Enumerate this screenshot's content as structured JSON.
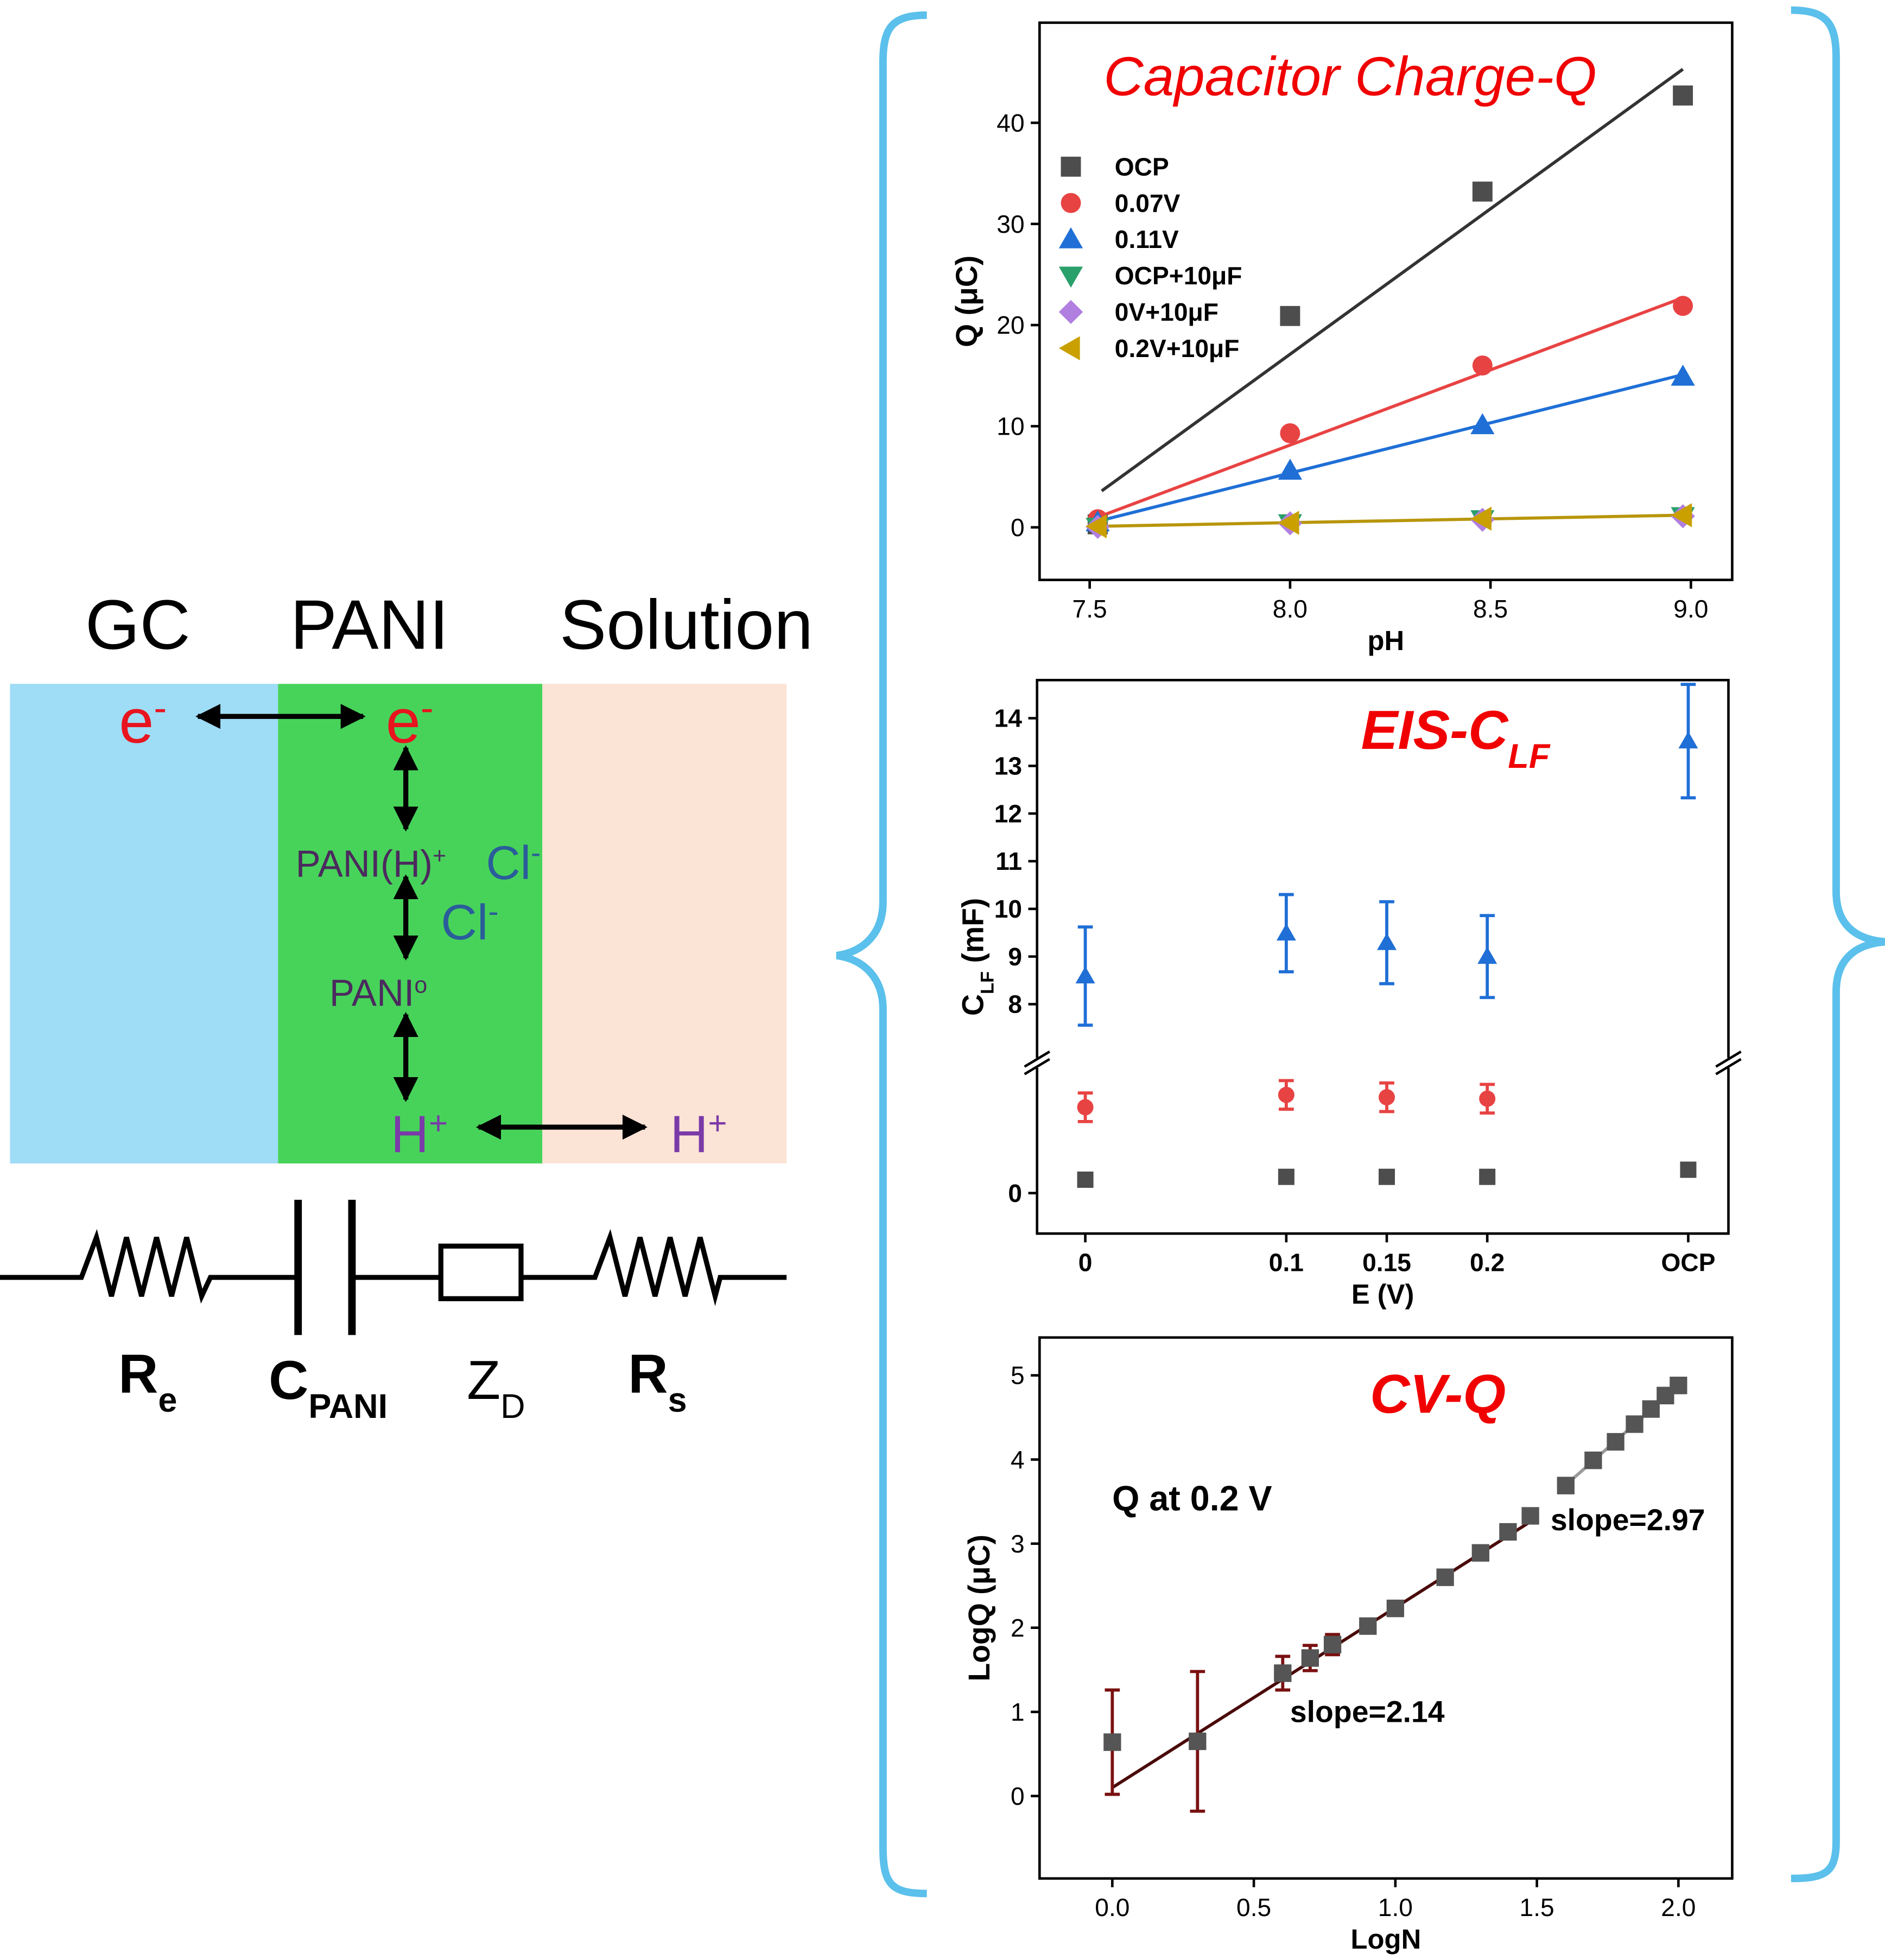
{
  "diagram": {
    "regions": [
      "GC",
      "PANI",
      "Solution"
    ],
    "species": [
      [
        {
          "text": "e"
        },
        {
          "sup": "-"
        }
      ],
      [
        {
          "text": "e"
        },
        {
          "sup": "-"
        }
      ],
      [
        {
          "text": "PANI(H)"
        },
        {
          "sup": "+"
        }
      ],
      [
        {
          "text": "Cl"
        },
        {
          "sup": "-"
        }
      ],
      [
        {
          "text": "Cl"
        },
        {
          "sup": "-"
        }
      ],
      [
        {
          "text": "PANI"
        },
        {
          "sup": "o"
        }
      ],
      [
        {
          "text": "H"
        },
        {
          "sup": "+"
        }
      ],
      [
        {
          "text": "H"
        },
        {
          "sup": "+"
        }
      ]
    ],
    "circuit": [
      [
        {
          "text": "R"
        },
        {
          "sub": "e"
        }
      ],
      [
        {
          "text": "C"
        },
        {
          "sub": "PANI"
        }
      ],
      [
        {
          "text": "Z"
        },
        {
          "sub": "D"
        }
      ],
      [
        {
          "text": "R"
        },
        {
          "sub": "s"
        }
      ]
    ]
  },
  "chart_data": [
    {
      "type": "scatter",
      "title": "Capacitor Charge-Q",
      "xlabel": "pH",
      "ylabel": "Q (μC)",
      "xlim": [
        7.375,
        9.103
      ],
      "ylim": [
        -5.2,
        49.9
      ],
      "xticks": [
        7.5,
        {
          "value": 8,
          "label": "8.0"
        },
        8.5,
        {
          "value": 9,
          "label": "9.0"
        }
      ],
      "yticks": [
        0,
        10,
        20,
        30,
        40
      ],
      "legend": "upper left",
      "series": [
        {
          "name": "OCP",
          "color": "#4d4d4d",
          "marker": "square",
          "x": [
            7.52,
            8.0,
            8.48,
            8.98
          ],
          "values": [
            0.3,
            20.9,
            33.2,
            42.7
          ]
        },
        {
          "name": "0.07V",
          "color": "#e84343",
          "marker": "circle",
          "x": [
            7.52,
            8.0,
            8.48,
            8.98
          ],
          "values": [
            0.8,
            9.3,
            16.0,
            21.9
          ]
        },
        {
          "name": "0.11V",
          "color": "#1f6fd6",
          "marker": "triangle-up",
          "x": [
            7.52,
            8.0,
            8.48,
            8.98
          ],
          "values": [
            0.5,
            5.6,
            10.1,
            14.9
          ]
        },
        {
          "name": "OCP+10μF",
          "color": "#2aa06a",
          "marker": "triangle-down",
          "x": [
            7.52,
            8.0,
            8.48,
            8.98
          ],
          "values": [
            0.05,
            0.4,
            0.8,
            1.1
          ]
        },
        {
          "name": "0V+10μF",
          "color": "#b07fe0",
          "marker": "diamond",
          "x": [
            7.52,
            8.0,
            8.48,
            8.98
          ],
          "values": [
            0.05,
            0.4,
            0.75,
            1.1
          ]
        },
        {
          "name": "0.2V+10μF",
          "color": "#c9a000",
          "marker": "triangle-left",
          "x": [
            7.52,
            8.0,
            8.48,
            8.98
          ],
          "values": [
            0.1,
            0.45,
            0.85,
            1.2
          ]
        }
      ],
      "fit_lines": [
        {
          "color": "#333333",
          "x": [
            7.53,
            8.98
          ],
          "values": [
            3.6,
            45.3
          ]
        },
        {
          "color": "#e84343",
          "x": [
            7.52,
            8.98
          ],
          "values": [
            1.0,
            22.7
          ]
        },
        {
          "color": "#1f6fd6",
          "x": [
            7.52,
            8.98
          ],
          "values": [
            0.6,
            15.1
          ]
        },
        {
          "color": "#b8960c",
          "x": [
            7.52,
            8.98
          ],
          "values": [
            0.1,
            1.2
          ]
        }
      ]
    },
    {
      "type": "scatter",
      "title": [
        {
          "text": "EIS-C"
        },
        {
          "sub": "LF"
        }
      ],
      "xlabel": "E (V)",
      "ylabel": [
        {
          "text": "C"
        },
        {
          "sub": "LF"
        },
        {
          "text": " (mF)"
        }
      ],
      "xlim": [
        -0.024,
        0.32
      ],
      "ylim": [
        -0.85,
        14.8
      ],
      "ybreak": [
        2.6,
        6.9
      ],
      "xticks": [
        0,
        0.1,
        0.15,
        0.2,
        {
          "value": 0.3,
          "label": "OCP"
        }
      ],
      "yticks": [
        0,
        8,
        9,
        10,
        11,
        12,
        13,
        14
      ],
      "series": [
        {
          "color": "#4d4d4d",
          "marker": "square",
          "x": [
            0,
            0.1,
            0.15,
            0.2,
            0.3
          ],
          "values": [
            0.28,
            0.34,
            0.34,
            0.34,
            0.49
          ],
          "errors": [
            0.05,
            0.05,
            0.05,
            0.05,
            0.05
          ]
        },
        {
          "color": "#e84343",
          "marker": "circle",
          "x": [
            0,
            0.1,
            0.15,
            0.2,
            0.3
          ],
          "values": [
            1.8,
            2.06,
            2.01,
            1.98,
            null
          ],
          "errors": [
            0.3,
            0.3,
            0.3,
            0.3,
            null
          ]
        },
        {
          "color": "#1f6fd6",
          "marker": "triangle-up",
          "x": [
            0,
            0.1,
            0.15,
            0.2,
            0.3
          ],
          "values": [
            8.59,
            9.49,
            9.29,
            9.0,
            13.52
          ],
          "errors": [
            1.03,
            0.81,
            0.86,
            0.86,
            1.19
          ]
        }
      ]
    },
    {
      "type": "scatter",
      "title": "CV-Q",
      "xlabel": "LogN",
      "ylabel": "LogQ (μC)",
      "xlim": [
        -0.257,
        2.19
      ],
      "ylim": [
        -0.98,
        5.45
      ],
      "xticks": [
        {
          "value": 0,
          "label": "0.0"
        },
        0.5,
        {
          "value": 1,
          "label": "1.0"
        },
        1.5,
        {
          "value": 2,
          "label": "2.0"
        }
      ],
      "yticks": [
        0,
        1,
        2,
        3,
        4,
        5
      ],
      "annotations": [
        "Q at 0.2 V",
        "slope=2.97",
        "slope=2.14"
      ],
      "series": [
        {
          "color": "#555555",
          "marker": "square",
          "error_color": "#7a1010",
          "x": [
            0,
            0.301,
            0.602,
            0.699,
            0.778,
            0.903,
            1.0,
            1.176,
            1.301,
            1.398,
            1.477,
            1.602,
            1.699,
            1.778,
            1.845,
            1.903,
            1.954,
            2.0
          ],
          "values": [
            0.64,
            0.65,
            1.46,
            1.64,
            1.8,
            2.02,
            2.23,
            2.6,
            2.89,
            3.14,
            3.33,
            3.69,
            3.99,
            4.21,
            4.42,
            4.6,
            4.76,
            4.88
          ],
          "errors": [
            0.62,
            0.83,
            0.2,
            0.15,
            0.12,
            0.08,
            0.06,
            0.05,
            0.05,
            0.05,
            0.05,
            0.04,
            0.04,
            0.04,
            0.04,
            0.04,
            0.04,
            0.04
          ]
        }
      ],
      "fit_lines": [
        {
          "color": "#4a0a0a",
          "x": [
            0,
            1.5
          ],
          "values": [
            0.1,
            3.31
          ]
        },
        {
          "color": "#9a9a9a",
          "x": [
            1.6,
            2.0
          ],
          "values": [
            3.69,
            4.88
          ]
        }
      ]
    }
  ]
}
